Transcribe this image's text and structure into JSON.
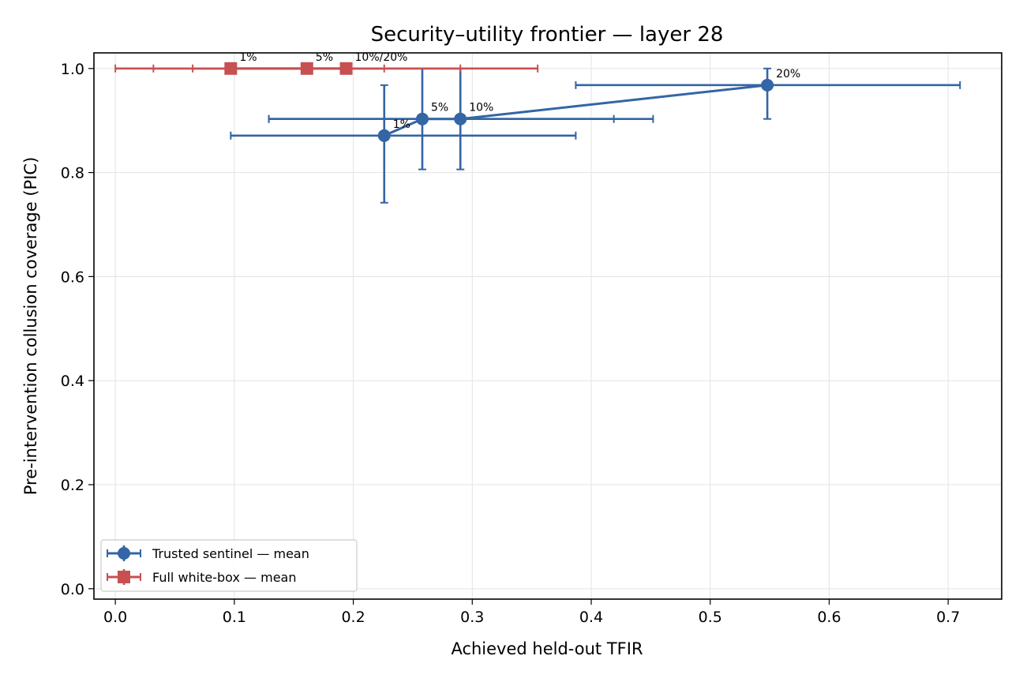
{
  "chart_data": {
    "type": "scatter",
    "title": "Security–utility frontier — layer 28",
    "xlabel": "Achieved held-out TFIR",
    "ylabel": "Pre-intervention collusion coverage (PIC)",
    "xlim": [
      -0.018,
      0.745
    ],
    "ylim": [
      -0.02,
      1.03
    ],
    "xticks": [
      0.0,
      0.1,
      0.2,
      0.3,
      0.4,
      0.5,
      0.6,
      0.7
    ],
    "xtick_labels": [
      "0.0",
      "0.1",
      "0.2",
      "0.3",
      "0.4",
      "0.5",
      "0.6",
      "0.7"
    ],
    "yticks": [
      0.0,
      0.2,
      0.4,
      0.6,
      0.8,
      1.0
    ],
    "ytick_labels": [
      "0.0",
      "0.2",
      "0.4",
      "0.6",
      "0.8",
      "1.0"
    ],
    "grid": true,
    "legend_position": "lower-left",
    "series": [
      {
        "name": "Trusted sentinel — mean",
        "color": "#3465a4",
        "marker": "circle",
        "points": [
          {
            "label": "1%",
            "x": 0.226,
            "y": 0.871,
            "xerr": [
              0.097,
              0.387
            ],
            "yerr": [
              0.742,
              0.968
            ]
          },
          {
            "label": "5%",
            "x": 0.258,
            "y": 0.903,
            "xerr": [
              0.129,
              0.419
            ],
            "yerr": [
              0.806,
              1.0
            ]
          },
          {
            "label": "10%",
            "x": 0.29,
            "y": 0.903,
            "xerr": [
              0.129,
              0.452
            ],
            "yerr": [
              0.806,
              1.0
            ]
          },
          {
            "label": "20%",
            "x": 0.548,
            "y": 0.968,
            "xerr": [
              0.387,
              0.71
            ],
            "yerr": [
              0.903,
              1.0
            ]
          }
        ]
      },
      {
        "name": "Full white-box — mean",
        "color": "#c75050",
        "marker": "square",
        "points": [
          {
            "label": "1%",
            "x": 0.097,
            "y": 1.0,
            "xerr": [
              0.0,
              0.226
            ],
            "yerr": [
              1.0,
              1.0
            ]
          },
          {
            "label": "5%",
            "x": 0.161,
            "y": 1.0,
            "xerr": [
              0.032,
              0.29
            ],
            "yerr": [
              1.0,
              1.0
            ]
          },
          {
            "label": "10%/20%",
            "x": 0.194,
            "y": 1.0,
            "xerr": [
              0.065,
              0.355
            ],
            "yerr": [
              1.0,
              1.0
            ]
          }
        ]
      }
    ]
  }
}
